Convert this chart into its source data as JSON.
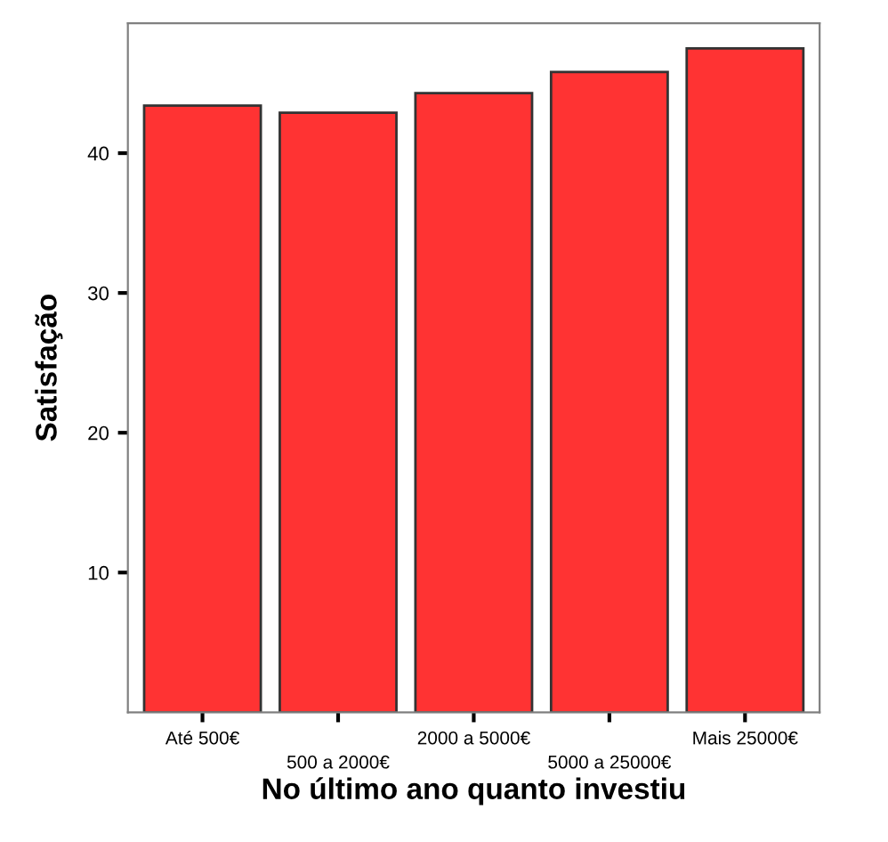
{
  "chart_data": {
    "type": "bar",
    "xlabel": "No último ano quanto investiu",
    "ylabel": "Satisfação",
    "categories": [
      "Até 500€",
      "500 a 2000€",
      "2000 a 5000€",
      "5000 a 25000€",
      "Mais 25000€"
    ],
    "values": [
      43.4,
      42.9,
      44.3,
      45.8,
      47.5
    ],
    "color": "#ff3333",
    "ylim": [
      0,
      49.3
    ],
    "yticks": [
      10,
      20,
      30,
      40
    ],
    "grid": false,
    "legend": false
  }
}
